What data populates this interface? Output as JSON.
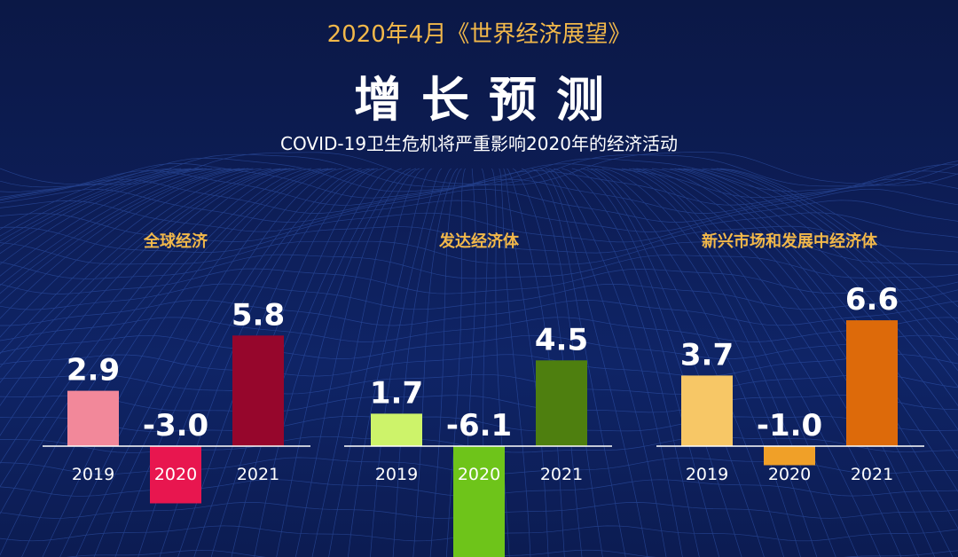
{
  "header": {
    "report": "2020年4月《世界经济展望》",
    "title": "增长预测",
    "caption": "COVID-19卫生危机将严重影响2020年的经济活动"
  },
  "colors": {
    "background": "#0c1a4d",
    "header_accent": "#f2b84a",
    "panel_title": "#f2b84a",
    "value_text": "#ffffff",
    "axis": "#ffffff"
  },
  "chart_data": [
    {
      "type": "bar",
      "title": "全球经济",
      "categories": [
        "2019",
        "2020",
        "2021"
      ],
      "values": [
        2.9,
        -3.0,
        5.8
      ],
      "value_labels": [
        "2.9",
        "-3.0",
        "5.8"
      ],
      "colors": [
        "#f2889a",
        "#e8164f",
        "#96062c"
      ]
    },
    {
      "type": "bar",
      "title": "发达经济体",
      "categories": [
        "2019",
        "2020",
        "2021"
      ],
      "values": [
        1.7,
        -6.1,
        4.5
      ],
      "value_labels": [
        "1.7",
        "-6.1",
        "4.5"
      ],
      "colors": [
        "#cdf36a",
        "#6ec41a",
        "#4e7f0f"
      ]
    },
    {
      "type": "bar",
      "title": "新兴市场和发展中经济体",
      "categories": [
        "2019",
        "2020",
        "2021"
      ],
      "values": [
        3.7,
        -1.0,
        6.6
      ],
      "value_labels": [
        "3.7",
        "-1.0",
        "6.6"
      ],
      "colors": [
        "#f7c766",
        "#f0a028",
        "#dd6a0a"
      ]
    }
  ]
}
